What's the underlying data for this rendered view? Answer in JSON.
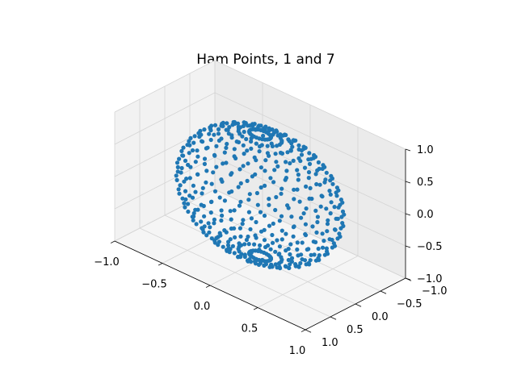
{
  "chart_data": {
    "type": "scatter",
    "projection": "3d",
    "title": "Ham Points, 1 and 7",
    "xlabel": "",
    "ylabel": "",
    "zlabel": "",
    "xlim": [
      -1.0,
      1.0
    ],
    "ylim": [
      -1.0,
      1.0
    ],
    "zlim": [
      -1.0,
      1.0
    ],
    "x_ticks": [
      "−1.0",
      "−0.5",
      "0.0",
      "0.5",
      "1.0"
    ],
    "y_ticks": [
      "−1.0",
      "−0.5",
      "0.0",
      "0.5",
      "1.0"
    ],
    "z_ticks": [
      "−1.0",
      "−0.5",
      "0.0",
      "0.5",
      "1.0"
    ],
    "grid": true,
    "marker_color": "#1f77b4",
    "series": [
      {
        "description_of_shape": "points on a unit sphere arranged along 'Ham Points' spirals",
        "latitudes": 24,
        "points_per_band": 24
      }
    ]
  }
}
